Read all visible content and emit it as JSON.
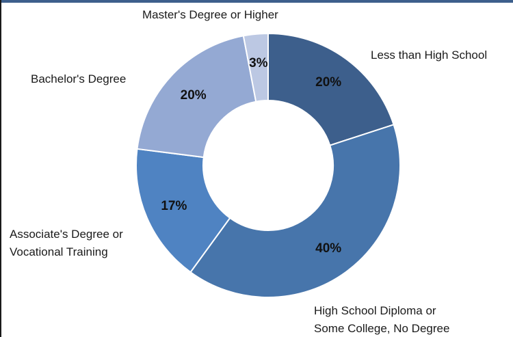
{
  "chart_data": {
    "type": "pie",
    "donut": true,
    "title": "",
    "categories": [
      "Less than High School",
      "High School Diploma or Some College, No Degree",
      "Associate's Degree or Vocational Training",
      "Bachelor's Degree",
      "Master's Degree or Higher"
    ],
    "label_lines": [
      [
        "Less than High School"
      ],
      [
        "High School Diploma or",
        "Some College, No Degree"
      ],
      [
        "Associate's Degree or",
        "Vocational Training"
      ],
      [
        "Bachelor's Degree"
      ],
      [
        "Master's Degree or Higher"
      ]
    ],
    "values": [
      20,
      40,
      17,
      20,
      3
    ],
    "value_labels": [
      "20%",
      "40%",
      "17%",
      "20%",
      "3%"
    ],
    "colors": [
      "#3d5f8c",
      "#4775ab",
      "#4f83c2",
      "#94a9d3",
      "#bcc8e3"
    ],
    "legend": "none"
  }
}
